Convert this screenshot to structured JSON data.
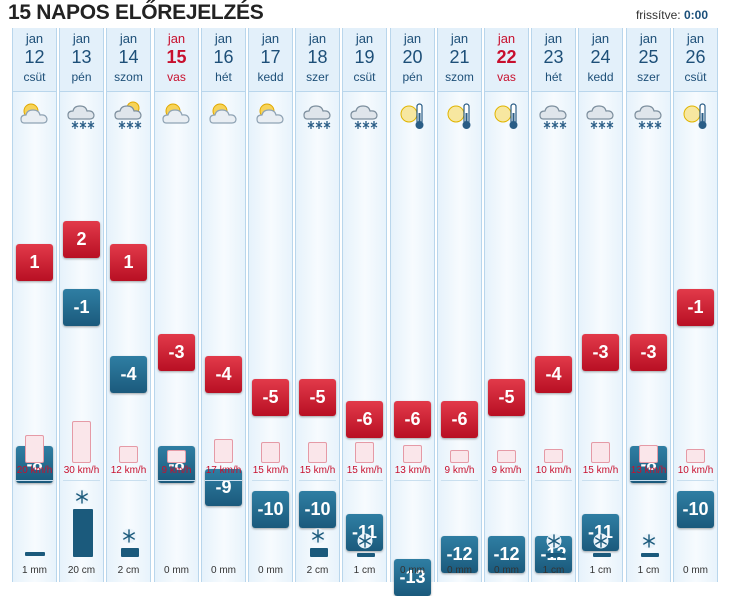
{
  "header": {
    "title": "15 NAPOS ELŐREJELZÉS",
    "updated_label": "frissítve:",
    "updated_value": "0:00"
  },
  "days": [
    {
      "month": "jan",
      "day": "12",
      "weekday": "csüt",
      "weekend": false,
      "icon": "partly-cloudy-icon",
      "tmax": "1",
      "tmin": "-8",
      "wind": "20 km/h",
      "wind_kmh": 20,
      "precip": "1 mm",
      "precip_type": "rain",
      "precip_amount": 1
    },
    {
      "month": "jan",
      "day": "13",
      "weekday": "pén",
      "weekend": false,
      "icon": "cloud-snow-icon",
      "tmax": "2",
      "tmin": "-1",
      "wind": "30 km/h",
      "wind_kmh": 30,
      "precip": "20 cm",
      "precip_type": "snow",
      "precip_amount": 20
    },
    {
      "month": "jan",
      "day": "14",
      "weekday": "szom",
      "weekend": false,
      "icon": "sun-cloud-snow-icon",
      "tmax": "1",
      "tmin": "-4",
      "wind": "12 km/h",
      "wind_kmh": 12,
      "precip": "2 cm",
      "precip_type": "snow",
      "precip_amount": 2
    },
    {
      "month": "jan",
      "day": "15",
      "weekday": "vas",
      "weekend": true,
      "icon": "sun-cloud-icon",
      "tmax": "-3",
      "tmin": "-8",
      "wind": "9 km/h",
      "wind_kmh": 9,
      "precip": "0 mm",
      "precip_type": "none",
      "precip_amount": 0
    },
    {
      "month": "jan",
      "day": "16",
      "weekday": "hét",
      "weekend": false,
      "icon": "sun-cloud-icon",
      "tmax": "-4",
      "tmin": "-9",
      "wind": "17 km/h",
      "wind_kmh": 17,
      "precip": "0 mm",
      "precip_type": "none",
      "precip_amount": 0
    },
    {
      "month": "jan",
      "day": "17",
      "weekday": "kedd",
      "weekend": false,
      "icon": "sun-cloud-icon",
      "tmax": "-5",
      "tmin": "-10",
      "wind": "15 km/h",
      "wind_kmh": 15,
      "precip": "0 mm",
      "precip_type": "none",
      "precip_amount": 0
    },
    {
      "month": "jan",
      "day": "18",
      "weekday": "szer",
      "weekend": false,
      "icon": "cloud-snow-icon",
      "tmax": "-5",
      "tmin": "-10",
      "wind": "15 km/h",
      "wind_kmh": 15,
      "precip": "2 cm",
      "precip_type": "snow",
      "precip_amount": 2
    },
    {
      "month": "jan",
      "day": "19",
      "weekday": "csüt",
      "weekend": false,
      "icon": "cloud-snow-icon",
      "tmax": "-6",
      "tmin": "-11",
      "wind": "15 km/h",
      "wind_kmh": 15,
      "precip": "1 cm",
      "precip_type": "snow",
      "precip_amount": 1
    },
    {
      "month": "jan",
      "day": "20",
      "weekday": "pén",
      "weekend": false,
      "icon": "sun-cold-icon",
      "tmax": "-6",
      "tmin": "-13",
      "wind": "13 km/h",
      "wind_kmh": 13,
      "precip": "0 mm",
      "precip_type": "none",
      "precip_amount": 0
    },
    {
      "month": "jan",
      "day": "21",
      "weekday": "szom",
      "weekend": false,
      "icon": "sun-cold-icon",
      "tmax": "-6",
      "tmin": "-12",
      "wind": "9 km/h",
      "wind_kmh": 9,
      "precip": "0 mm",
      "precip_type": "none",
      "precip_amount": 0
    },
    {
      "month": "jan",
      "day": "22",
      "weekday": "vas",
      "weekend": true,
      "icon": "sun-cold-icon",
      "tmax": "-5",
      "tmin": "-12",
      "wind": "9 km/h",
      "wind_kmh": 9,
      "precip": "0 mm",
      "precip_type": "none",
      "precip_amount": 0
    },
    {
      "month": "jan",
      "day": "23",
      "weekday": "hét",
      "weekend": false,
      "icon": "cloud-snow-icon",
      "tmax": "-4",
      "tmin": "-12",
      "wind": "10 km/h",
      "wind_kmh": 10,
      "precip": "1 cm",
      "precip_type": "snow",
      "precip_amount": 1
    },
    {
      "month": "jan",
      "day": "24",
      "weekday": "kedd",
      "weekend": false,
      "icon": "cloud-snow-icon",
      "tmax": "-3",
      "tmin": "-11",
      "wind": "15 km/h",
      "wind_kmh": 15,
      "precip": "1 cm",
      "precip_type": "snow",
      "precip_amount": 1
    },
    {
      "month": "jan",
      "day": "25",
      "weekday": "szer",
      "weekend": false,
      "icon": "cloud-snow-icon",
      "tmax": "-3",
      "tmin": "-8",
      "wind": "13 km/h",
      "wind_kmh": 13,
      "precip": "1 cm",
      "precip_type": "snow",
      "precip_amount": 1
    },
    {
      "month": "jan",
      "day": "26",
      "weekday": "csüt",
      "weekend": false,
      "icon": "sun-cold-icon",
      "tmax": "-1",
      "tmin": "-10",
      "wind": "10 km/h",
      "wind_kmh": 10,
      "precip": "0 mm",
      "precip_type": "none",
      "precip_amount": 0
    }
  ],
  "colors": {
    "weekend": "#c8102e",
    "weekday": "#1d4f78",
    "max_temp": "#c8102e",
    "min_temp": "#1b5a7c",
    "wind": "#c8102e"
  }
}
